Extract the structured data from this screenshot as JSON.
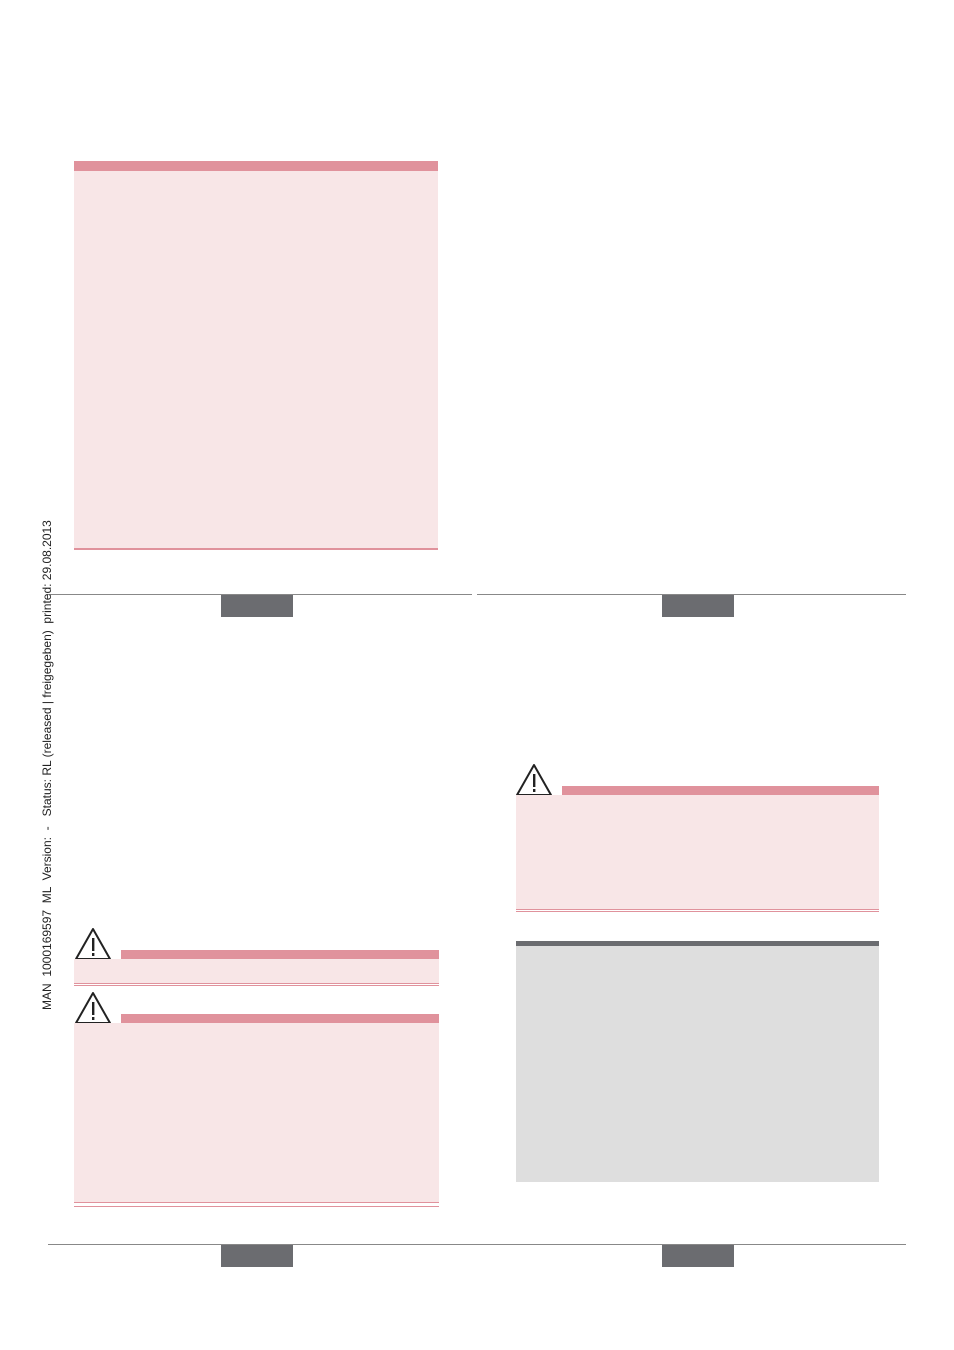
{
  "sidebar": {
    "text": "MAN  1000169597  ML  Version:  -   Status: RL (released | freigegeben)  printed: 29.08.2013"
  }
}
